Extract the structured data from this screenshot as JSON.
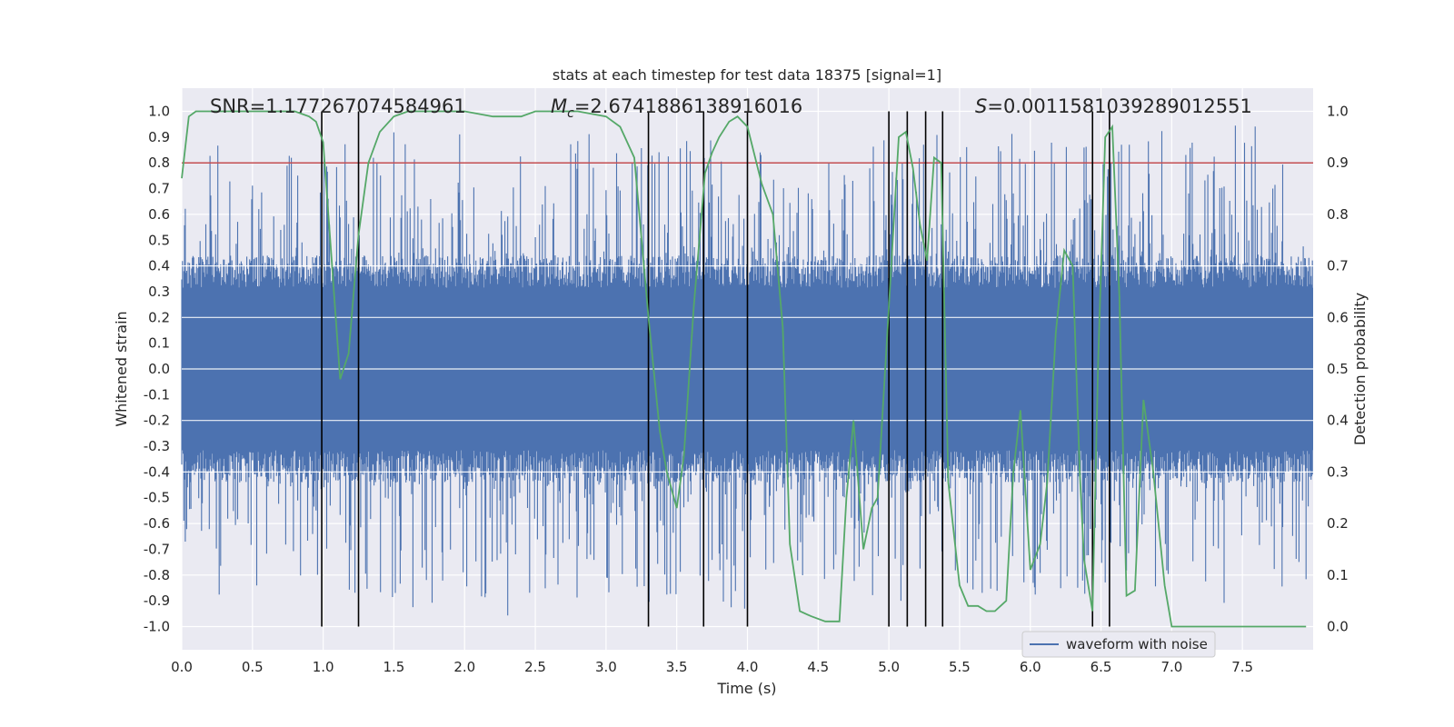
{
  "chart_data": {
    "type": "line",
    "title": "stats at each timestep for test data 18375 [signal=1]",
    "xlabel": "Time (s)",
    "ylabel_left": "Whitened strain",
    "ylabel_right": "Detection probability",
    "xlim": [
      0,
      8.0
    ],
    "ylim_left": [
      -1.09,
      1.09
    ],
    "ylim_right": [
      -0.045,
      1.045
    ],
    "x_ticks": [
      "0.0",
      "0.5",
      "1.0",
      "1.5",
      "2.0",
      "2.5",
      "3.0",
      "3.5",
      "4.0",
      "4.5",
      "5.0",
      "5.5",
      "6.0",
      "6.5",
      "7.0",
      "7.5"
    ],
    "y_left_ticks": [
      "1.0",
      "0.9",
      "0.8",
      "0.7",
      "0.6",
      "0.5",
      "0.4",
      "0.3",
      "0.2",
      "0.1",
      "0.0",
      "-0.1",
      "-0.2",
      "-0.3",
      "-0.4",
      "-0.5",
      "-0.6",
      "-0.7",
      "-0.8",
      "-0.9",
      "-1.0"
    ],
    "y_right_ticks": [
      "1.0",
      "0.9",
      "0.8",
      "0.7",
      "0.6",
      "0.5",
      "0.4",
      "0.3",
      "0.2",
      "0.1",
      "0.0"
    ],
    "grid": true,
    "annotations": {
      "snr": "SNR=1.177267074584961",
      "mc_symbol": "M",
      "mc_sub": "c",
      "mc_value": "=2.6741886138916016",
      "s_symbol": "S",
      "s_value": "=0.0011581039289012551"
    },
    "threshold": {
      "value": 0.8,
      "color": "#c44e52"
    },
    "vertical_lines": [
      0.99,
      1.25,
      3.3,
      3.69,
      4.0,
      5.0,
      5.13,
      5.26,
      5.38,
      6.44,
      6.56
    ],
    "series": [
      {
        "name": "waveform with noise",
        "axis": "left",
        "color": "#4c72b0",
        "noise": {
          "samples": 1600,
          "envelope": 0.42,
          "spike_max": 0.95,
          "seed": 18375
        }
      },
      {
        "axis": "right",
        "color": "#55a868",
        "x": [
          0.0,
          0.05,
          0.1,
          0.2,
          0.4,
          0.6,
          0.8,
          0.9,
          0.95,
          1.0,
          1.05,
          1.12,
          1.18,
          1.25,
          1.32,
          1.4,
          1.5,
          1.6,
          1.8,
          2.0,
          2.2,
          2.4,
          2.5,
          2.6,
          2.8,
          3.0,
          3.1,
          3.2,
          3.3,
          3.38,
          3.43,
          3.5,
          3.55,
          3.62,
          3.7,
          3.75,
          3.8,
          3.87,
          3.93,
          4.0,
          4.1,
          4.18,
          4.25,
          4.3,
          4.37,
          4.45,
          4.55,
          4.65,
          4.7,
          4.75,
          4.82,
          4.88,
          4.92,
          5.0,
          5.07,
          5.12,
          5.17,
          5.22,
          5.27,
          5.32,
          5.37,
          5.42,
          5.5,
          5.56,
          5.63,
          5.69,
          5.75,
          5.83,
          5.88,
          5.93,
          6.0,
          6.07,
          6.12,
          6.18,
          6.24,
          6.3,
          6.35,
          6.38,
          6.44,
          6.48,
          6.53,
          6.58,
          6.63,
          6.68,
          6.74,
          6.8,
          6.87,
          6.95,
          7.0,
          7.2,
          7.5,
          7.75,
          7.95
        ],
        "values": [
          0.87,
          0.99,
          1.0,
          1.0,
          1.0,
          1.0,
          1.0,
          0.99,
          0.98,
          0.94,
          0.75,
          0.48,
          0.53,
          0.76,
          0.9,
          0.96,
          0.99,
          1.0,
          1.0,
          1.0,
          0.99,
          0.99,
          1.0,
          1.0,
          1.0,
          0.99,
          0.97,
          0.91,
          0.6,
          0.38,
          0.3,
          0.23,
          0.33,
          0.62,
          0.88,
          0.92,
          0.95,
          0.98,
          0.99,
          0.97,
          0.86,
          0.8,
          0.58,
          0.16,
          0.03,
          0.02,
          0.01,
          0.01,
          0.25,
          0.4,
          0.15,
          0.23,
          0.25,
          0.62,
          0.95,
          0.96,
          0.89,
          0.78,
          0.71,
          0.91,
          0.9,
          0.28,
          0.08,
          0.04,
          0.04,
          0.03,
          0.03,
          0.05,
          0.3,
          0.42,
          0.11,
          0.16,
          0.28,
          0.57,
          0.73,
          0.7,
          0.3,
          0.13,
          0.03,
          0.52,
          0.95,
          0.97,
          0.64,
          0.06,
          0.07,
          0.44,
          0.3,
          0.08,
          0.0,
          0.0,
          0.0,
          0.0,
          0.0
        ]
      }
    ],
    "legend": {
      "position": "bottom-right"
    }
  }
}
